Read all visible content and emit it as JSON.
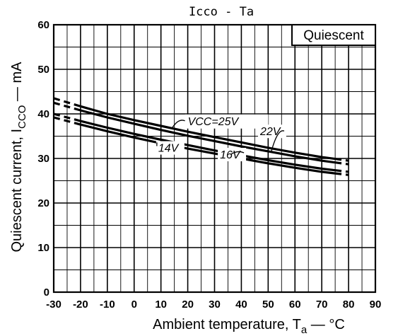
{
  "chart_data": {
    "type": "line",
    "title": "Icco - Ta",
    "xlabel": "Ambient temperature, Ta — °C",
    "ylabel": "Quiescent current, Icco — mA",
    "xlim": [
      -30,
      90
    ],
    "ylim": [
      0,
      60
    ],
    "xticks": [
      -30,
      -20,
      -10,
      0,
      10,
      20,
      30,
      40,
      50,
      60,
      70,
      80,
      90
    ],
    "yticks": [
      0,
      10,
      20,
      30,
      40,
      50,
      60
    ],
    "grid": true,
    "box_label": "Quiescent",
    "series": [
      {
        "name": "25V",
        "x": [
          -30,
          -20,
          -10,
          0,
          10,
          20,
          30,
          40,
          50,
          60,
          70,
          80
        ],
        "y": [
          43.5,
          41.7,
          40.0,
          38.6,
          37.3,
          36.0,
          34.8,
          33.6,
          32.4,
          31.3,
          30.3,
          29.5
        ],
        "dashed_below": -20,
        "dashed_above": 75
      },
      {
        "name": "22V",
        "x": [
          -30,
          -20,
          -10,
          0,
          10,
          20,
          30,
          40,
          50,
          60,
          70,
          80
        ],
        "y": [
          42.5,
          40.8,
          39.2,
          37.8,
          36.4,
          35.1,
          33.9,
          32.7,
          31.6,
          30.5,
          29.5,
          28.7
        ],
        "dashed_below": -20,
        "dashed_above": 75
      },
      {
        "name": "16V",
        "x": [
          -30,
          -20,
          -10,
          0,
          10,
          20,
          30,
          40,
          50,
          60,
          70,
          80
        ],
        "y": [
          40.0,
          38.4,
          36.9,
          35.5,
          34.2,
          33.0,
          31.8,
          30.7,
          29.6,
          28.6,
          27.7,
          27.0
        ],
        "dashed_below": -20,
        "dashed_above": 75
      },
      {
        "name": "14V",
        "x": [
          -30,
          -20,
          -10,
          0,
          10,
          20,
          30,
          40,
          50,
          60,
          70,
          80
        ],
        "y": [
          39.2,
          37.6,
          36.1,
          34.7,
          33.4,
          32.2,
          31.1,
          30.0,
          28.9,
          27.9,
          27.0,
          26.3
        ],
        "dashed_below": -20,
        "dashed_above": 75
      }
    ],
    "annotations": [
      {
        "text": "VCC=25V",
        "x": 20,
        "y": 37.5
      },
      {
        "text": "22V",
        "x": 47,
        "y": 35.2
      },
      {
        "text": "14V",
        "x": 9,
        "y": 31.5
      },
      {
        "text": "16V",
        "x": 32,
        "y": 30.0
      }
    ]
  }
}
